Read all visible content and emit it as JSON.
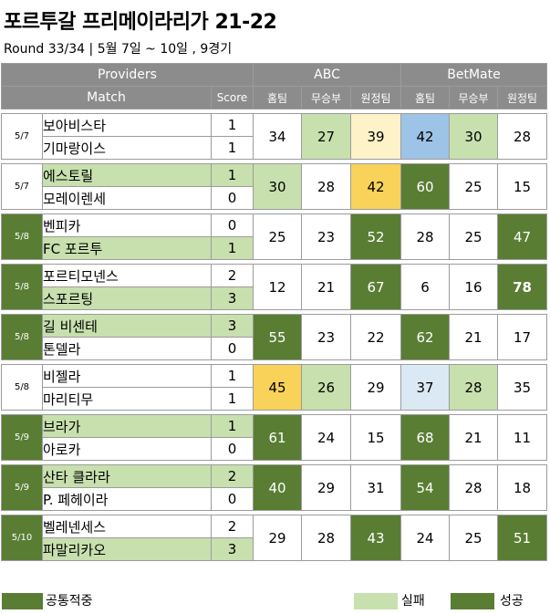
{
  "title": "포르투갈 프리메이라리가 21-22",
  "subtitle": "Round 33/34 | 5월 7일 ~ 10일 , 9경기",
  "header": {
    "providers": "Providers",
    "match": "Match",
    "score": "Score",
    "abc": "ABC",
    "betmate": "BetMate",
    "home": "홈팀",
    "draw": "무승부",
    "away": "원정팀"
  },
  "matches": [
    {
      "date": "5/7",
      "date_hit": false,
      "home": "보아비스타",
      "away": "기마랑이스",
      "home_score": "1",
      "away_score": "1",
      "winner": "none",
      "abc": [
        {
          "v": "34",
          "c": ""
        },
        {
          "v": "27",
          "c": "ltgreen"
        },
        {
          "v": "39",
          "c": "ltyellow"
        }
      ],
      "betmate": [
        {
          "v": "42",
          "c": "blue"
        },
        {
          "v": "30",
          "c": "ltgreen"
        },
        {
          "v": "28",
          "c": ""
        }
      ]
    },
    {
      "date": "5/7",
      "date_hit": false,
      "home": "에스토릴",
      "away": "모레이렌세",
      "home_score": "1",
      "away_score": "0",
      "winner": "home",
      "abc": [
        {
          "v": "30",
          "c": "ltgreen"
        },
        {
          "v": "28",
          "c": ""
        },
        {
          "v": "42",
          "c": "yellow"
        }
      ],
      "betmate": [
        {
          "v": "60",
          "c": "dkgreen"
        },
        {
          "v": "25",
          "c": ""
        },
        {
          "v": "15",
          "c": ""
        }
      ]
    },
    {
      "date": "5/8",
      "date_hit": true,
      "home": "벤피카",
      "away": "FC 포르투",
      "home_score": "0",
      "away_score": "1",
      "winner": "away",
      "abc": [
        {
          "v": "25",
          "c": ""
        },
        {
          "v": "23",
          "c": ""
        },
        {
          "v": "52",
          "c": "dkgreen"
        }
      ],
      "betmate": [
        {
          "v": "28",
          "c": ""
        },
        {
          "v": "25",
          "c": ""
        },
        {
          "v": "47",
          "c": "dkgreen"
        }
      ]
    },
    {
      "date": "5/8",
      "date_hit": true,
      "home": "포르티모넨스",
      "away": "스포르팅",
      "home_score": "2",
      "away_score": "3",
      "winner": "away",
      "abc": [
        {
          "v": "12",
          "c": ""
        },
        {
          "v": "21",
          "c": ""
        },
        {
          "v": "67",
          "c": "dkgreen"
        }
      ],
      "betmate": [
        {
          "v": "6",
          "c": ""
        },
        {
          "v": "16",
          "c": ""
        },
        {
          "v": "78",
          "c": "dkgreen",
          "b": true
        }
      ]
    },
    {
      "date": "5/8",
      "date_hit": true,
      "home": "길 비센테",
      "away": "톤델라",
      "home_score": "3",
      "away_score": "0",
      "winner": "home",
      "abc": [
        {
          "v": "55",
          "c": "dkgreen"
        },
        {
          "v": "23",
          "c": ""
        },
        {
          "v": "22",
          "c": ""
        }
      ],
      "betmate": [
        {
          "v": "62",
          "c": "dkgreen"
        },
        {
          "v": "21",
          "c": ""
        },
        {
          "v": "17",
          "c": ""
        }
      ]
    },
    {
      "date": "5/8",
      "date_hit": false,
      "home": "비젤라",
      "away": "마리티무",
      "home_score": "1",
      "away_score": "1",
      "winner": "none",
      "abc": [
        {
          "v": "45",
          "c": "yellow"
        },
        {
          "v": "26",
          "c": "ltgreen"
        },
        {
          "v": "29",
          "c": ""
        }
      ],
      "betmate": [
        {
          "v": "37",
          "c": "ltblue"
        },
        {
          "v": "28",
          "c": "ltgreen"
        },
        {
          "v": "35",
          "c": ""
        }
      ]
    },
    {
      "date": "5/9",
      "date_hit": true,
      "home": "브라가",
      "away": "아로카",
      "home_score": "1",
      "away_score": "0",
      "winner": "home",
      "abc": [
        {
          "v": "61",
          "c": "dkgreen"
        },
        {
          "v": "24",
          "c": ""
        },
        {
          "v": "15",
          "c": ""
        }
      ],
      "betmate": [
        {
          "v": "68",
          "c": "dkgreen"
        },
        {
          "v": "21",
          "c": ""
        },
        {
          "v": "11",
          "c": ""
        }
      ]
    },
    {
      "date": "5/9",
      "date_hit": true,
      "home": "산타 클라라",
      "away": "P. 페헤이라",
      "home_score": "2",
      "away_score": "0",
      "winner": "home",
      "abc": [
        {
          "v": "40",
          "c": "dkgreen"
        },
        {
          "v": "29",
          "c": ""
        },
        {
          "v": "31",
          "c": ""
        }
      ],
      "betmate": [
        {
          "v": "54",
          "c": "dkgreen"
        },
        {
          "v": "28",
          "c": ""
        },
        {
          "v": "18",
          "c": ""
        }
      ]
    },
    {
      "date": "5/10",
      "date_hit": true,
      "home": "벨레넨세스",
      "away": "파말리카오",
      "home_score": "2",
      "away_score": "3",
      "winner": "away",
      "abc": [
        {
          "v": "29",
          "c": ""
        },
        {
          "v": "28",
          "c": ""
        },
        {
          "v": "43",
          "c": "dkgreen"
        }
      ],
      "betmate": [
        {
          "v": "24",
          "c": ""
        },
        {
          "v": "25",
          "c": ""
        },
        {
          "v": "51",
          "c": "dkgreen"
        }
      ]
    }
  ],
  "legend": {
    "common_hit": {
      "label": "공통적중",
      "color": "#5a7d34"
    },
    "fail": {
      "label": "실패",
      "color": "#c7e0ae"
    },
    "success": {
      "label": "성공",
      "color": "#5a7d34"
    }
  }
}
